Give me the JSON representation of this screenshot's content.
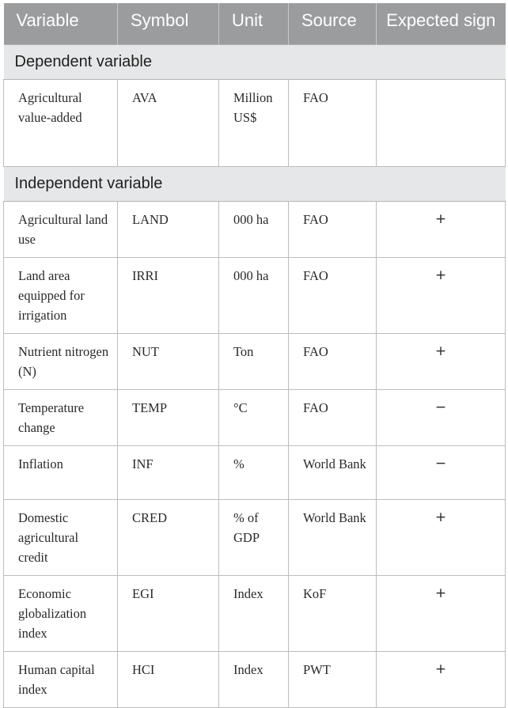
{
  "header": {
    "variable": "Variable",
    "symbol": "Symbol",
    "unit": "Unit",
    "source": "Source",
    "expected_sign": "Expected sign"
  },
  "sections": [
    {
      "title": "Dependent variable",
      "rows": [
        {
          "variable": "Agricultural value-added",
          "symbol": "AVA",
          "unit": "Million US$",
          "source": "FAO",
          "sign": ""
        }
      ]
    },
    {
      "title": "Independent variable",
      "rows": [
        {
          "variable": "Agricultural land use",
          "symbol": "LAND",
          "unit": "000 ha",
          "source": "FAO",
          "sign": "+"
        },
        {
          "variable": "Land area equipped for irrigation",
          "symbol": "IRRI",
          "unit": "000 ha",
          "source": "FAO",
          "sign": "+"
        },
        {
          "variable": "Nutrient nitrogen (N)",
          "symbol": "NUT",
          "unit": "Ton",
          "source": "FAO",
          "sign": "+"
        },
        {
          "variable": "Temperature change",
          "symbol": "TEMP",
          "unit": "°C",
          "source": "FAO",
          "sign": "−"
        },
        {
          "variable": "Inflation",
          "symbol": "INF",
          "unit": "%",
          "source": "World Bank",
          "sign": "−"
        },
        {
          "variable": "Domestic agricultural credit",
          "symbol": "CRED",
          "unit": "% of GDP",
          "source": "World Bank",
          "sign": "+"
        },
        {
          "variable": "Economic globalization index",
          "symbol": "EGI",
          "unit": "Index",
          "source": "KoF",
          "sign": "+"
        },
        {
          "variable": "Human capital index",
          "symbol": "HCI",
          "unit": "Index",
          "source": "PWT",
          "sign": "+"
        }
      ]
    }
  ]
}
